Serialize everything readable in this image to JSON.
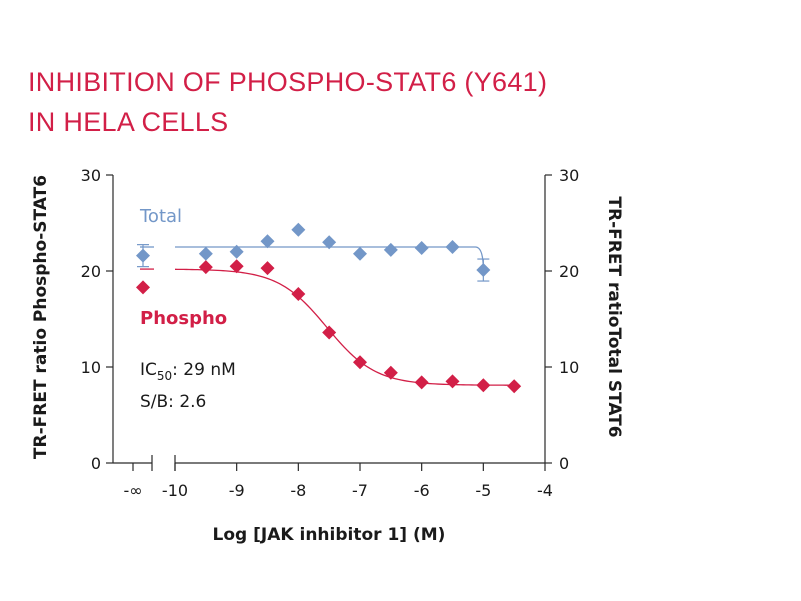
{
  "title_line1": "INHIBITION OF PHOSPHO-STAT6 (Y641)",
  "title_line2": "IN HELA CELLS",
  "chart_data": {
    "type": "scatter",
    "xlabel": "Log [JAK inhibitor 1] (M)",
    "ylabel_left": "TR-FRET ratio Phospho-STAT6",
    "ylabel_right": "TR-FRET ratioTotal STAT6",
    "xlim": [
      -10,
      -4
    ],
    "x_ticks": [
      -10,
      -9,
      -8,
      -7,
      -6,
      -5,
      -4
    ],
    "x_break_label": "-∞",
    "ylim": [
      0,
      30
    ],
    "y_ticks": [
      0,
      10,
      20,
      30
    ],
    "grid": false,
    "legend": "inline labels",
    "series": [
      {
        "name": "Total",
        "color": "#7397c8",
        "marker": "diamond",
        "baseline_value": 21.6,
        "x": [
          -9.5,
          -9.0,
          -8.5,
          -8.0,
          -7.5,
          -7.0,
          -6.5,
          -6.0,
          -5.5,
          -5.0
        ],
        "y": [
          21.8,
          22.0,
          23.1,
          24.3,
          23.0,
          21.8,
          22.2,
          22.4,
          22.5,
          20.1
        ],
        "fit": "flat",
        "fit_value": 22.5
      },
      {
        "name": "Phospho",
        "color": "#d21f47",
        "marker": "diamond",
        "baseline_value": 18.3,
        "x": [
          -9.5,
          -9.0,
          -8.5,
          -8.0,
          -7.5,
          -7.0,
          -6.5,
          -6.0,
          -5.5,
          -5.0,
          -4.5
        ],
        "y": [
          20.4,
          20.5,
          20.3,
          17.6,
          13.6,
          10.5,
          9.4,
          8.4,
          8.5,
          8.1,
          8.0
        ],
        "fit": "sigmoid",
        "fit_top": 20.2,
        "fit_bottom": 8.1,
        "fit_logIC50": -7.54,
        "fit_hill": 1.1
      }
    ],
    "annotations": {
      "ic50_prefix": "IC",
      "ic50_sub": "50",
      "ic50_value": ": 29 nM",
      "sb": "S/B: 2.6"
    }
  }
}
